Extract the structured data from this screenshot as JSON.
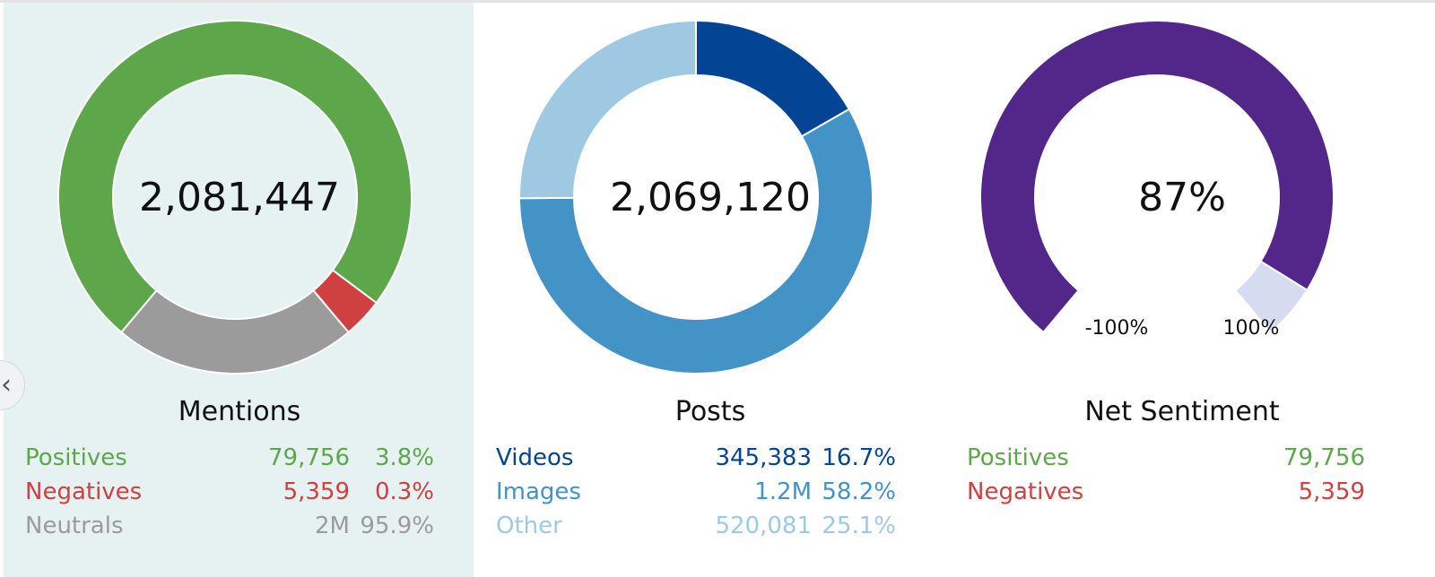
{
  "colors": {
    "positive": "#5da74a",
    "negative": "#cf4040",
    "neutral": "#9b9b9b",
    "videos": "#034594",
    "images": "#4393c7",
    "other": "#9fc9e2",
    "sentiment_fill": "#53268a",
    "sentiment_rest": "#d7dbf0",
    "panel_bg": "#e6f1f2"
  },
  "icons": {
    "collapse": "chevron-left-icon"
  },
  "collapse_glyph": "‹",
  "chart_data": [
    {
      "type": "pie",
      "variant": "donut",
      "title": "Mentions",
      "center_value": "2,081,447",
      "series": [
        {
          "name": "Positives",
          "value": 79756,
          "value_label": "79,756",
          "percent": 3.8,
          "percent_label": "3.8%",
          "color": "#5da74a"
        },
        {
          "name": "Negatives",
          "value": 5359,
          "value_label": "5,359",
          "percent": 0.3,
          "percent_label": "0.3%",
          "color": "#cf4040"
        },
        {
          "name": "Neutrals",
          "value": 1996332,
          "value_label": "2M",
          "percent": 95.9,
          "percent_label": "95.9%",
          "color": "#9b9b9b"
        }
      ]
    },
    {
      "type": "pie",
      "variant": "donut",
      "title": "Posts",
      "center_value": "2,069,120",
      "series": [
        {
          "name": "Videos",
          "value": 345383,
          "value_label": "345,383",
          "percent": 16.7,
          "percent_label": "16.7%",
          "color": "#034594"
        },
        {
          "name": "Images",
          "value": 1203656,
          "value_label": "1.2M",
          "percent": 58.2,
          "percent_label": "58.2%",
          "color": "#4393c7"
        },
        {
          "name": "Other",
          "value": 520081,
          "value_label": "520,081",
          "percent": 25.1,
          "percent_label": "25.1%",
          "color": "#9fc9e2"
        }
      ]
    },
    {
      "type": "gauge",
      "title": "Net Sentiment",
      "center_value": "87%",
      "value": 87,
      "range": [
        -100,
        100
      ],
      "min_label": "-100%",
      "max_label": "100%",
      "series": [
        {
          "name": "Positives",
          "value": 79756,
          "value_label": "79,756",
          "color": "#5da74a"
        },
        {
          "name": "Negatives",
          "value": 5359,
          "value_label": "5,359",
          "color": "#cf4040"
        }
      ]
    }
  ]
}
